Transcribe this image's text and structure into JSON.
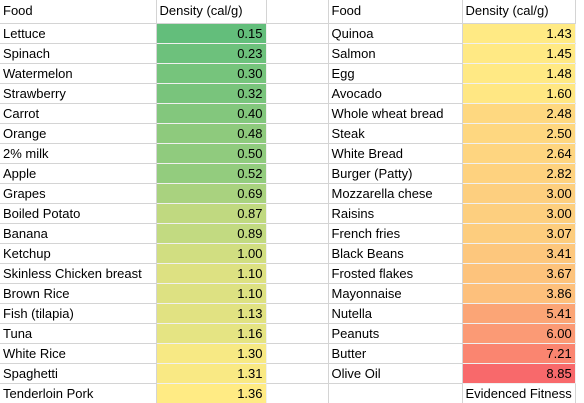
{
  "headers": {
    "left_food": "Food",
    "left_density": "Density (cal/g)",
    "right_food": "Food",
    "right_density": "Density (cal/g)"
  },
  "color_scale": {
    "low": "#63be7b",
    "mid": "#ffeb84",
    "high": "#f8696b",
    "low_value": 0.15,
    "high_value": 8.85
  },
  "left_rows": [
    {
      "food": "Lettuce",
      "density": "0.15"
    },
    {
      "food": "Spinach",
      "density": "0.23"
    },
    {
      "food": "Watermelon",
      "density": "0.30"
    },
    {
      "food": "Strawberry",
      "density": "0.32"
    },
    {
      "food": "Carrot",
      "density": "0.40"
    },
    {
      "food": "Orange",
      "density": "0.48"
    },
    {
      "food": "2% milk",
      "density": "0.50"
    },
    {
      "food": "Apple",
      "density": "0.52"
    },
    {
      "food": "Grapes",
      "density": "0.69"
    },
    {
      "food": "Boiled Potato",
      "density": "0.87"
    },
    {
      "food": "Banana",
      "density": "0.89"
    },
    {
      "food": "Ketchup",
      "density": "1.00"
    },
    {
      "food": "Skinless Chicken breast",
      "density": "1.10"
    },
    {
      "food": "Brown Rice",
      "density": "1.10"
    },
    {
      "food": "Fish (tilapia)",
      "density": "1.13"
    },
    {
      "food": "Tuna",
      "density": "1.16"
    },
    {
      "food": "White Rice",
      "density": "1.30"
    },
    {
      "food": "Spaghetti",
      "density": "1.31"
    },
    {
      "food": "Tenderloin Pork",
      "density": "1.36"
    }
  ],
  "right_rows": [
    {
      "food": "Quinoa",
      "density": "1.43"
    },
    {
      "food": "Salmon",
      "density": "1.45"
    },
    {
      "food": "Egg",
      "density": "1.48"
    },
    {
      "food": "Avocado",
      "density": "1.60"
    },
    {
      "food": "Whole wheat bread",
      "density": "2.48"
    },
    {
      "food": "Steak",
      "density": "2.50"
    },
    {
      "food": "White Bread",
      "density": "2.64"
    },
    {
      "food": "Burger (Patty)",
      "density": "2.82"
    },
    {
      "food": "Mozzarella chese",
      "density": "3.00"
    },
    {
      "food": "Raisins",
      "density": "3.00"
    },
    {
      "food": "French fries",
      "density": "3.07"
    },
    {
      "food": "Black Beans",
      "density": "3.41"
    },
    {
      "food": "Frosted flakes",
      "density": "3.67"
    },
    {
      "food": "Mayonnaise",
      "density": "3.86"
    },
    {
      "food": "Nutella",
      "density": "5.41"
    },
    {
      "food": "Peanuts",
      "density": "6.00"
    },
    {
      "food": "Butter",
      "density": "7.21"
    },
    {
      "food": "Olive Oil",
      "density": "8.85"
    }
  ],
  "credit": "Evidenced Fitness"
}
